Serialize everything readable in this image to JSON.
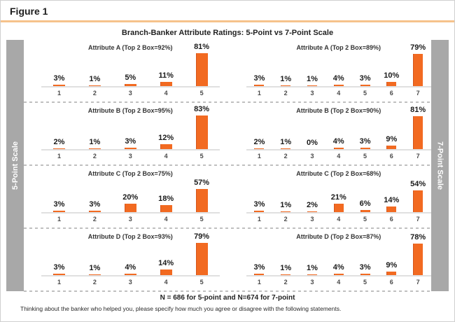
{
  "figure": {
    "label": "Figure 1"
  },
  "header": {
    "title": "Branch-Banker Attribute Ratings: 5-Point vs 7-Point Scale"
  },
  "sidebars": {
    "left": "5-Point Scale",
    "right": "7-Point Scale"
  },
  "footer": {
    "sample_note": "N = 686 for 5-point and N=674 for 7-point",
    "question_text": "Thinking about the banker who helped you, please specify how much you agree or disagree with the following statements."
  },
  "colors": {
    "bar": "#F26A21",
    "bar_edge": "#D5551B",
    "accent_rule": "#F6C28B",
    "sidebar_bg": "#A8A8A8",
    "axis_line": "#E0E0E0",
    "dash_line": "#C0C0C0"
  },
  "chart_data": [
    {
      "type": "bar",
      "scale": "5-point",
      "title": "Attribute A (Top 2 Box=92%)",
      "categories": [
        "1",
        "2",
        "3",
        "4",
        "5"
      ],
      "values": [
        3,
        1,
        5,
        11,
        81
      ],
      "unit": "%",
      "ylim": [
        0,
        100
      ]
    },
    {
      "type": "bar",
      "scale": "7-point",
      "title": "Attribute A (Top 2 Box=89%)",
      "categories": [
        "1",
        "2",
        "3",
        "4",
        "5",
        "6",
        "7"
      ],
      "values": [
        3,
        1,
        1,
        4,
        3,
        10,
        79
      ],
      "unit": "%",
      "ylim": [
        0,
        100
      ]
    },
    {
      "type": "bar",
      "scale": "5-point",
      "title": "Attribute B (Top 2 Box=95%)",
      "categories": [
        "1",
        "2",
        "3",
        "4",
        "5"
      ],
      "values": [
        2,
        1,
        3,
        12,
        83
      ],
      "unit": "%",
      "ylim": [
        0,
        100
      ]
    },
    {
      "type": "bar",
      "scale": "7-point",
      "title": "Attribute B (Top 2 Box=90%)",
      "categories": [
        "1",
        "2",
        "3",
        "4",
        "5",
        "6",
        "7"
      ],
      "values": [
        2,
        1,
        0,
        4,
        3,
        9,
        81
      ],
      "unit": "%",
      "ylim": [
        0,
        100
      ]
    },
    {
      "type": "bar",
      "scale": "5-point",
      "title": "Attribute C (Top 2 Box=75%)",
      "categories": [
        "1",
        "2",
        "3",
        "4",
        "5"
      ],
      "values": [
        3,
        3,
        20,
        18,
        57
      ],
      "unit": "%",
      "ylim": [
        0,
        100
      ]
    },
    {
      "type": "bar",
      "scale": "7-point",
      "title": "Attribute C (Top 2 Box=68%)",
      "categories": [
        "1",
        "2",
        "3",
        "4",
        "5",
        "6",
        "7"
      ],
      "values": [
        3,
        1,
        2,
        21,
        6,
        14,
        54
      ],
      "unit": "%",
      "ylim": [
        0,
        100
      ]
    },
    {
      "type": "bar",
      "scale": "5-point",
      "title": "Attribute D (Top 2 Box=93%)",
      "categories": [
        "1",
        "2",
        "3",
        "4",
        "5"
      ],
      "values": [
        3,
        1,
        4,
        14,
        79
      ],
      "unit": "%",
      "ylim": [
        0,
        100
      ]
    },
    {
      "type": "bar",
      "scale": "7-point",
      "title": "Attribute D (Top 2 Box=87%)",
      "categories": [
        "1",
        "2",
        "3",
        "4",
        "5",
        "6",
        "7"
      ],
      "values": [
        3,
        1,
        1,
        4,
        3,
        9,
        78
      ],
      "unit": "%",
      "ylim": [
        0,
        100
      ]
    }
  ]
}
